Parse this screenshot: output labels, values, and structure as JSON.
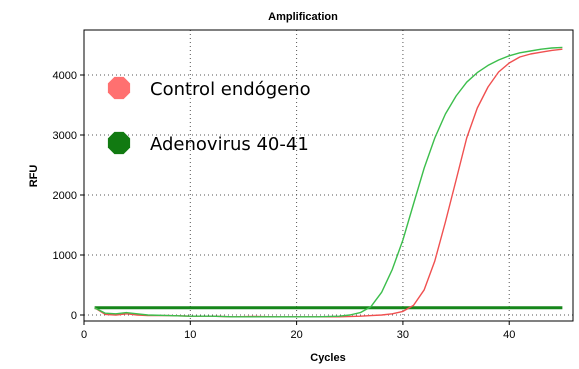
{
  "chart_data": {
    "type": "line",
    "title": "Amplification",
    "xlabel": "Cycles",
    "ylabel": "RFU",
    "xlim": [
      0,
      46
    ],
    "ylim": [
      -100,
      4750
    ],
    "xticks": [
      0,
      10,
      20,
      30,
      40
    ],
    "yticks": [
      0,
      1000,
      2000,
      3000,
      4000
    ],
    "grid": true,
    "legend_position": "top-left",
    "threshold": {
      "value": 120,
      "color": "#16861a"
    },
    "series": [
      {
        "name": "Control endógeno",
        "color": "#f05050",
        "legend_color": "#ff7070",
        "x": [
          1,
          2,
          3,
          4,
          5,
          6,
          8,
          10,
          12,
          14,
          16,
          18,
          20,
          22,
          24,
          26,
          27,
          28,
          29,
          30,
          31,
          32,
          33,
          34,
          35,
          36,
          37,
          38,
          39,
          40,
          41,
          42,
          43,
          44,
          45
        ],
        "y": [
          120,
          10,
          0,
          20,
          0,
          -10,
          -10,
          -20,
          -20,
          -30,
          -25,
          -30,
          -30,
          -30,
          -30,
          -20,
          -10,
          0,
          20,
          60,
          160,
          420,
          900,
          1550,
          2250,
          2950,
          3450,
          3800,
          4050,
          4200,
          4300,
          4350,
          4380,
          4410,
          4430
        ]
      },
      {
        "name": "Adenovirus 40-41",
        "color": "#3cbe4c",
        "legend_color": "#117a11",
        "x": [
          1,
          2,
          3,
          4,
          5,
          6,
          8,
          10,
          12,
          14,
          16,
          18,
          20,
          22,
          24,
          25,
          26,
          27,
          28,
          29,
          30,
          31,
          32,
          33,
          34,
          35,
          36,
          37,
          38,
          39,
          40,
          41,
          42,
          43,
          44,
          45
        ],
        "y": [
          120,
          30,
          20,
          40,
          20,
          0,
          -10,
          -20,
          -20,
          -30,
          -30,
          -30,
          -30,
          -30,
          -20,
          0,
          40,
          140,
          380,
          760,
          1250,
          1850,
          2450,
          2950,
          3350,
          3650,
          3880,
          4040,
          4160,
          4250,
          4320,
          4370,
          4400,
          4430,
          4450,
          4460
        ]
      }
    ]
  }
}
